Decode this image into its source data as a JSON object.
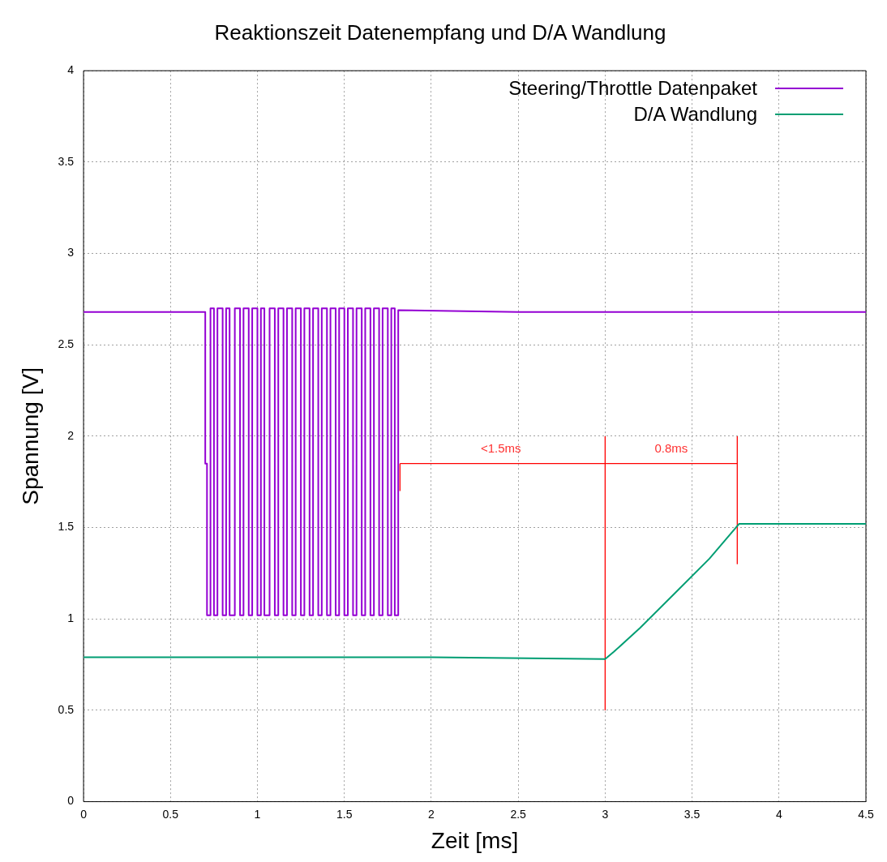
{
  "chart_data": {
    "type": "line",
    "title": "Reaktionszeit Datenempfang und D/A Wandlung",
    "xlabel": "Zeit [ms]",
    "ylabel": "Spannung [V]",
    "xlim": [
      0,
      4.5
    ],
    "xticks": [
      0,
      0.5,
      1,
      1.5,
      2,
      2.5,
      3,
      3.5,
      4,
      4.5
    ],
    "ylim": [
      0,
      4
    ],
    "yticks": [
      0,
      0.5,
      1,
      1.5,
      2,
      2.5,
      3,
      3.5,
      4
    ],
    "grid": true,
    "legend": "top right",
    "marker": "none",
    "line_style": "solid",
    "series": [
      {
        "name": "Steering/Throttle Datenpaket",
        "color": "#9400d3",
        "x": [
          0,
          0.35,
          0.7,
          0.7,
          0.71,
          0.71,
          0.73,
          0.73,
          0.75,
          0.75,
          0.77,
          0.77,
          0.8,
          0.8,
          0.82,
          0.82,
          0.84,
          0.84,
          0.87,
          0.87,
          0.9,
          0.9,
          0.92,
          0.92,
          0.95,
          0.95,
          0.97,
          0.97,
          1.0,
          1.0,
          1.02,
          1.02,
          1.04,
          1.04,
          1.07,
          1.07,
          1.1,
          1.1,
          1.12,
          1.12,
          1.15,
          1.15,
          1.17,
          1.17,
          1.2,
          1.2,
          1.22,
          1.22,
          1.25,
          1.25,
          1.27,
          1.27,
          1.3,
          1.3,
          1.32,
          1.32,
          1.35,
          1.35,
          1.37,
          1.37,
          1.4,
          1.4,
          1.42,
          1.42,
          1.45,
          1.45,
          1.47,
          1.47,
          1.5,
          1.5,
          1.52,
          1.52,
          1.55,
          1.55,
          1.57,
          1.57,
          1.6,
          1.6,
          1.62,
          1.62,
          1.65,
          1.65,
          1.67,
          1.67,
          1.7,
          1.7,
          1.72,
          1.72,
          1.75,
          1.75,
          1.77,
          1.77,
          1.79,
          1.79,
          1.81,
          1.81,
          2.5,
          3.5,
          4.5
        ],
        "values": [
          2.68,
          2.68,
          2.68,
          1.85,
          1.85,
          1.02,
          1.02,
          2.7,
          2.7,
          1.02,
          1.02,
          2.7,
          2.7,
          1.02,
          1.02,
          2.7,
          2.7,
          1.02,
          1.02,
          2.7,
          2.7,
          1.02,
          1.02,
          2.7,
          2.7,
          1.02,
          1.02,
          2.7,
          2.7,
          1.02,
          1.02,
          2.7,
          2.7,
          1.02,
          1.02,
          2.7,
          2.7,
          1.02,
          1.02,
          2.7,
          2.7,
          1.02,
          1.02,
          2.7,
          2.7,
          1.02,
          1.02,
          2.7,
          2.7,
          1.02,
          1.02,
          2.7,
          2.7,
          1.02,
          1.02,
          2.7,
          2.7,
          1.02,
          1.02,
          2.7,
          2.7,
          1.02,
          1.02,
          2.7,
          2.7,
          1.02,
          1.02,
          2.7,
          2.7,
          1.02,
          1.02,
          2.7,
          2.7,
          1.02,
          1.02,
          2.7,
          2.7,
          1.02,
          1.02,
          2.7,
          2.7,
          1.02,
          1.02,
          2.7,
          2.7,
          1.02,
          1.02,
          2.7,
          2.7,
          1.02,
          1.02,
          2.7,
          2.7,
          1.02,
          1.02,
          2.69,
          2.68,
          2.68,
          2.68
        ]
      },
      {
        "name": "D/A Wandlung",
        "color": "#009e73",
        "x": [
          0,
          1,
          2,
          3,
          3.05,
          3.2,
          3.4,
          3.6,
          3.77,
          4,
          4.5
        ],
        "values": [
          0.79,
          0.79,
          0.79,
          0.78,
          0.82,
          0.95,
          1.14,
          1.33,
          1.52,
          1.52,
          1.52
        ]
      },
      {
        "color": "#ff0000",
        "x": [
          3,
          3
        ],
        "values": [
          0.5,
          2.0
        ]
      },
      {
        "color": "#ff0000",
        "x": [
          3.76,
          3.76
        ],
        "values": [
          1.3,
          2.0
        ]
      },
      {
        "color": "#ff0000",
        "x": [
          1.82,
          1.82
        ],
        "values": [
          1.7,
          1.85
        ]
      },
      {
        "color": "#ff0000",
        "x": [
          1.82,
          3.76
        ],
        "values": [
          1.85,
          1.85
        ]
      }
    ],
    "annotations": [
      {
        "text": "<1.5ms",
        "x": 2.4,
        "y": 1.85
      },
      {
        "text": "0.8ms",
        "x": 3.38,
        "y": 1.85
      }
    ]
  }
}
